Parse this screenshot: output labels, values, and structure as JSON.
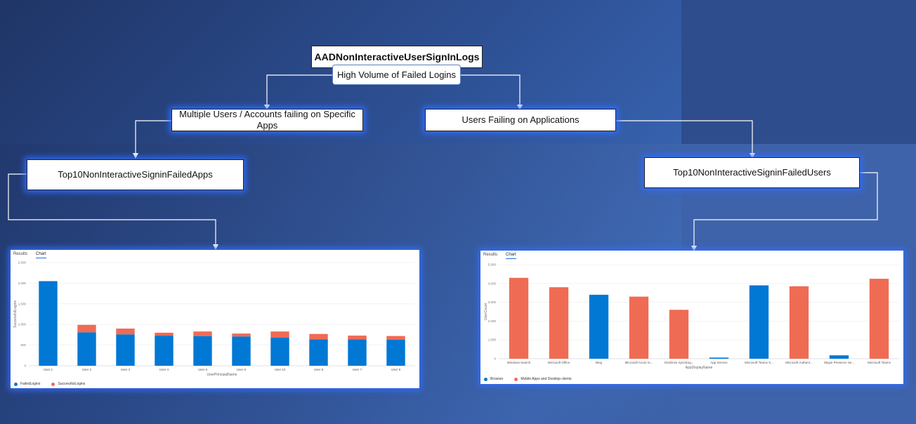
{
  "colors": {
    "blue": "#0078d4",
    "red": "#f06b54"
  },
  "diagram": {
    "root": "AADNonInteractiveUserSignInLogs",
    "subtitle": "High Volume of Failed Logins",
    "left_branch": "Multiple Users / Accounts failing on Specific Apps",
    "right_branch": "Users Failing on Applications",
    "left_query": "Top10NonInteractiveSigninFailedApps",
    "right_query": "Top10NonInteractiveSigninFailedUsers"
  },
  "left_panel": {
    "tab_results": "Results",
    "tab_chart": "Chart"
  },
  "right_panel": {
    "tab_results": "Results",
    "tab_chart": "Chart"
  },
  "chart_data": [
    {
      "type": "bar",
      "stacked": true,
      "categories": [
        "User 1",
        "User 2",
        "User 3",
        "User 4",
        "User 6",
        "User 5",
        "User 10",
        "User 8",
        "User 7",
        "User 9"
      ],
      "series": [
        {
          "name": "FailedLogins",
          "color": "#0078d4",
          "values": [
            2050,
            810,
            760,
            730,
            720,
            710,
            680,
            640,
            640,
            630
          ]
        },
        {
          "name": "SuccessfulLogins",
          "color": "#f06b54",
          "values": [
            0,
            180,
            140,
            70,
            110,
            70,
            150,
            130,
            90,
            90
          ]
        }
      ],
      "xlabel": "UserPrincipalName",
      "ylabel": "SuccessfulLogins",
      "yticks": [
        "0",
        "500",
        "1,000",
        "1,500",
        "2,000",
        "2,500"
      ],
      "ylim": [
        0,
        2500
      ],
      "legend": "bottom-left"
    },
    {
      "type": "bar",
      "categories": [
        "Windows Search",
        "Microsoft Office",
        "Bing",
        "Microsoft Azure In...",
        "OneDrive SyncEng...",
        "App Service",
        "Microsoft Teams S...",
        "Microsoft Authent...",
        "Skype Presence Se...",
        "Microsoft Teams"
      ],
      "series": [
        {
          "name": "Browser",
          "color": "#0078d4",
          "values": [
            0,
            0,
            3400,
            0,
            0,
            60,
            3900,
            0,
            180,
            0
          ]
        },
        {
          "name": "Mobile Apps and Desktop clients",
          "color": "#f06b54",
          "values": [
            4300,
            3800,
            0,
            3300,
            2600,
            0,
            0,
            3850,
            0,
            4250
          ]
        }
      ],
      "xlabel": "AppDisplayName",
      "ylabel": "UserCount",
      "yticks": [
        "0",
        "1,000",
        "2,000",
        "3,000",
        "4,000",
        "5,000"
      ],
      "ylim": [
        0,
        5000
      ],
      "legend": "bottom-left"
    }
  ]
}
